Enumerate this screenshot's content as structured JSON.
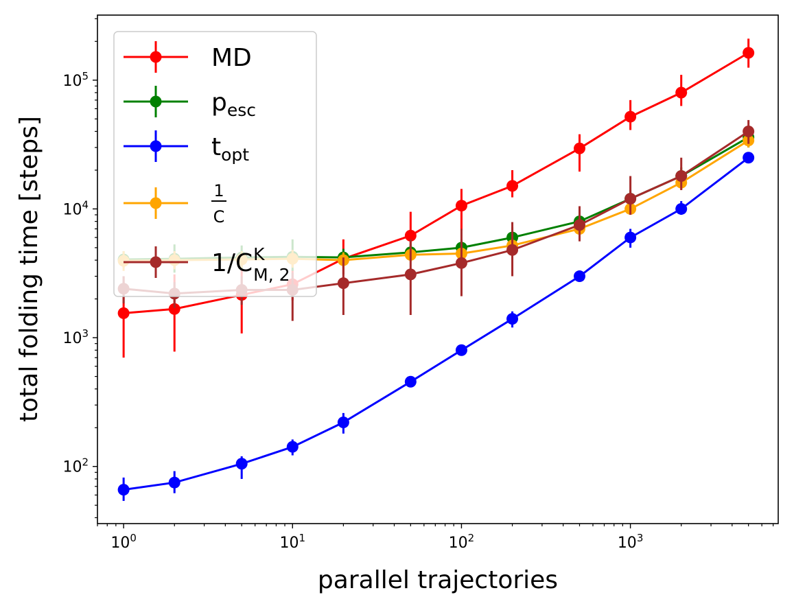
{
  "chart_data": {
    "type": "line",
    "xlabel": "parallel trajectories",
    "ylabel": "total folding time [steps]",
    "xscale": "log",
    "yscale": "log",
    "xlim": [
      0.7,
      7500
    ],
    "ylim": [
      36,
      320000
    ],
    "x_ticks": [
      {
        "value": 1,
        "base": "10",
        "exp": "0"
      },
      {
        "value": 10,
        "base": "10",
        "exp": "1"
      },
      {
        "value": 100,
        "base": "10",
        "exp": "2"
      },
      {
        "value": 1000,
        "base": "10",
        "exp": "3"
      }
    ],
    "y_ticks": [
      {
        "value": 100,
        "base": "10",
        "exp": "2"
      },
      {
        "value": 1000,
        "base": "10",
        "exp": "3"
      },
      {
        "value": 10000,
        "base": "10",
        "exp": "4"
      },
      {
        "value": 100000,
        "base": "10",
        "exp": "5"
      }
    ],
    "grid": false,
    "legend_position": "top-left",
    "x": [
      1,
      2,
      5,
      10,
      20,
      50,
      100,
      200,
      500,
      1000,
      2000,
      5000
    ],
    "series": [
      {
        "key": "md",
        "color": "#ff0000",
        "values": [
          1550,
          1670,
          2150,
          2600,
          4100,
          6200,
          10600,
          15100,
          29500,
          52000,
          80000,
          163000
        ],
        "err_low": [
          700,
          780,
          1080,
          1950,
          3100,
          4300,
          6800,
          12300,
          19500,
          41000,
          63000,
          125000
        ],
        "err_high": [
          3000,
          3100,
          3400,
          3400,
          5800,
          9500,
          14300,
          20000,
          38000,
          70000,
          110000,
          210000
        ]
      },
      {
        "key": "p_esc",
        "color": "#008000",
        "values": [
          4050,
          4100,
          4200,
          4250,
          4200,
          4600,
          5000,
          6000,
          8000,
          12000,
          18000,
          36000
        ],
        "err_low": [
          3500,
          3200,
          3400,
          3300,
          3600,
          4000,
          4300,
          4900,
          6500,
          10000,
          15000,
          30000
        ],
        "err_high": [
          4700,
          5300,
          5200,
          5800,
          4900,
          5300,
          5800,
          7200,
          9800,
          14000,
          21000,
          43000
        ]
      },
      {
        "key": "t_opt",
        "color": "#0000ff",
        "values": [
          66,
          75,
          105,
          142,
          220,
          455,
          800,
          1400,
          3000,
          6000,
          10000,
          25000
        ],
        "err_low": [
          54,
          62,
          80,
          122,
          180,
          430,
          760,
          1200,
          2800,
          5000,
          9000,
          23000
        ],
        "err_high": [
          82,
          92,
          120,
          162,
          260,
          480,
          840,
          1600,
          3200,
          7000,
          11500,
          27000
        ]
      },
      {
        "key": "inv_c",
        "color": "#ffa500",
        "values": [
          3950,
          4000,
          4050,
          4100,
          4000,
          4400,
          4500,
          5200,
          7000,
          10000,
          16000,
          34000
        ],
        "err_low": [
          3300,
          3400,
          3500,
          3500,
          3500,
          3900,
          4000,
          4600,
          6000,
          9000,
          14000,
          30000
        ],
        "err_high": [
          4700,
          4700,
          4700,
          4800,
          4600,
          5000,
          5100,
          6000,
          8200,
          11500,
          18500,
          39000
        ]
      },
      {
        "key": "inv_cmk2",
        "color": "#a52a2a",
        "values": [
          2400,
          2200,
          2350,
          2350,
          2650,
          3100,
          3800,
          4800,
          7500,
          12000,
          18000,
          40000
        ],
        "err_low": [
          1850,
          1700,
          1800,
          1350,
          1500,
          1500,
          2100,
          3000,
          5600,
          9000,
          14000,
          32000
        ],
        "err_high": [
          3000,
          2700,
          3000,
          3200,
          4200,
          5800,
          7000,
          7900,
          10500,
          18000,
          25000,
          49000
        ]
      }
    ],
    "legend": [
      {
        "series": "md",
        "label": "MD"
      },
      {
        "series": "p_esc",
        "label": "p",
        "sub": "esc"
      },
      {
        "series": "t_opt",
        "label": "t",
        "sub": "opt"
      },
      {
        "series": "inv_c",
        "numerator": "1",
        "denominator": "C"
      },
      {
        "series": "inv_cmk2",
        "label": "1/C",
        "sup": "K",
        "sub": "M, 2"
      }
    ]
  }
}
